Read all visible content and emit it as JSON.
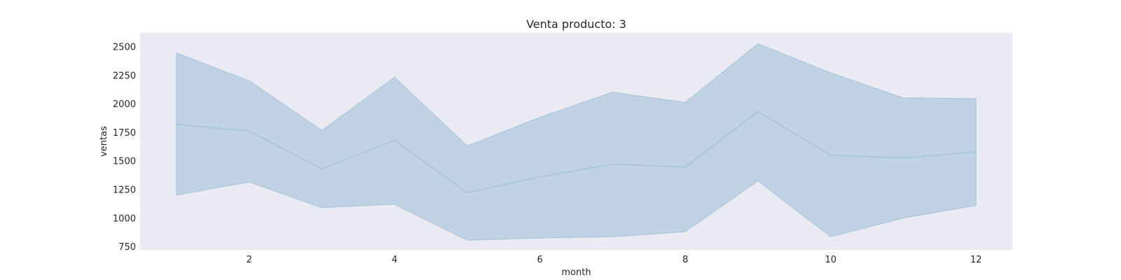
{
  "chart_data": {
    "type": "line",
    "title": "Venta producto: 3",
    "xlabel": "month",
    "ylabel": "ventas",
    "xlim": [
      0.5,
      12.5
    ],
    "ylim": [
      720,
      2620
    ],
    "xticks": [
      2,
      4,
      6,
      8,
      10,
      12
    ],
    "yticks": [
      750,
      1000,
      1250,
      1500,
      1750,
      2000,
      2250,
      2500
    ],
    "grid": false,
    "x": [
      1,
      2,
      3,
      4,
      5,
      6,
      7,
      8,
      9,
      10,
      11,
      12
    ],
    "series": [
      {
        "values": [
          1820,
          1760,
          1430,
          1680,
          1220,
          1360,
          1470,
          1445,
          1930,
          1550,
          1525,
          1580
        ],
        "band_lower": [
          1200,
          1315,
          1090,
          1120,
          805,
          825,
          835,
          880,
          1325,
          835,
          1000,
          1110
        ],
        "band_upper": [
          2445,
          2200,
          1765,
          2230,
          1630,
          1880,
          2100,
          2010,
          2525,
          2270,
          2050,
          2045
        ]
      }
    ],
    "colors": {
      "line": "#a9c5de",
      "band": "#c1d2e4",
      "plot_bg": "#eaeaf2"
    }
  }
}
